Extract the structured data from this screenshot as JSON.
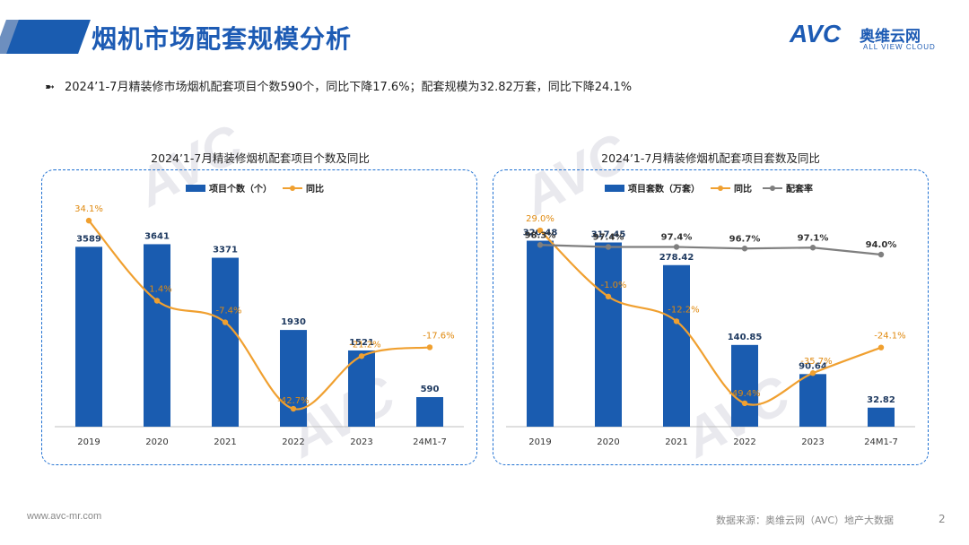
{
  "page": {
    "title": "烟机市场配套规模分析",
    "summary": "2024’1-7月精装修市场烟机配套项目个数590个，同比下降17.6%；配套规模为32.82万套，同比下降24.1%",
    "summary_icon": "arrow-bullet-icon",
    "footer_url": "www.avc-mr.com",
    "footer_source": "数据来源：奥维云网（AVC）地产大数据",
    "page_number": "2"
  },
  "logo": {
    "text": "AVC",
    "cn": "奥维云网",
    "en": "ALL VIEW CLOUD"
  },
  "colors": {
    "bar": "#1a5cb0",
    "yoy_line": "#f0a030",
    "rate_line": "#7f7f7f",
    "title": "#1d5bb4",
    "panel_border": "#1d6fd1"
  },
  "chart_data": [
    {
      "type": "bar",
      "title": "2024’1-7月精装修烟机配套项目个数及同比",
      "categories": [
        "2019",
        "2020",
        "2021",
        "2022",
        "2023",
        "24M1-7"
      ],
      "legend_position": "top",
      "series": [
        {
          "name": "项目个数（个）",
          "type": "bar",
          "values": [
            3589,
            3641,
            3371,
            1930,
            1521,
            590
          ],
          "labels": [
            "3589",
            "3641",
            "3371",
            "1930",
            "1521",
            "590"
          ]
        },
        {
          "name": "同比",
          "type": "line",
          "values": [
            34.1,
            1.4,
            -7.4,
            -42.7,
            -21.2,
            -17.6
          ],
          "labels": [
            "34.1%",
            "1.4%",
            "-7.4%",
            "-42.7%",
            "-21.2%",
            "-17.6%"
          ]
        }
      ],
      "ylim": [
        0,
        4400
      ],
      "y2lim": [
        -50,
        40
      ]
    },
    {
      "type": "bar",
      "title": "2024’1-7月精装修烟机配套项目套数及同比",
      "categories": [
        "2019",
        "2020",
        "2021",
        "2022",
        "2023",
        "24M1-7"
      ],
      "legend_position": "top",
      "series": [
        {
          "name": "项目套数（万套）",
          "type": "bar",
          "values": [
            320.48,
            317.45,
            278.42,
            140.85,
            90.64,
            32.82
          ],
          "labels": [
            "320.48",
            "317.45",
            "278.42",
            "140.85",
            "90.64",
            "32.82"
          ]
        },
        {
          "name": "同比",
          "type": "line",
          "values": [
            29.0,
            -1.0,
            -12.2,
            -49.4,
            -35.7,
            -24.1
          ],
          "labels": [
            "29.0%",
            "-1.0%",
            "-12.2%",
            "-49.4%",
            "-35.7%",
            "-24.1%"
          ]
        },
        {
          "name": "配套率",
          "type": "line",
          "values": [
            98.3,
            97.4,
            97.4,
            96.7,
            97.1,
            94.0
          ],
          "labels": [
            "98.3%",
            "97.4%",
            "97.4%",
            "96.7%",
            "97.1%",
            "94.0%"
          ]
        }
      ],
      "ylim": [
        0,
        380
      ],
      "y2lim": [
        -60,
        40
      ]
    }
  ]
}
